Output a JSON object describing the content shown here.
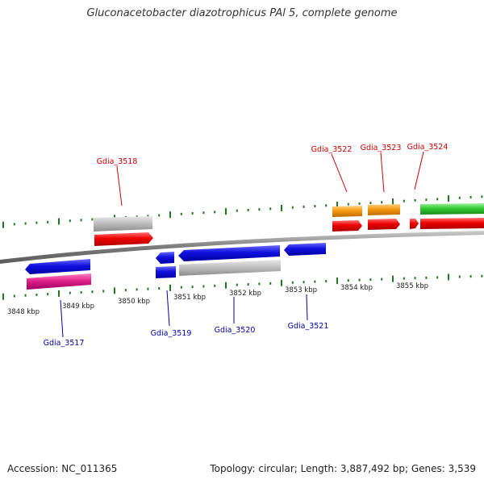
{
  "title": "Gluconacetobacter diazotrophicus PAl 5, complete genome",
  "footer": {
    "accession": "Accession: NC_011365",
    "topology": "Topology: circular; Length: 3,887,492 bp; Genes: 3,539"
  },
  "colors": {
    "backbone": "#8a8a8a",
    "tick": "#1f7a1f",
    "label_top": "#cc0000",
    "label_bottom": "#0000aa",
    "blue": "#1010e0",
    "red": "#ee0000",
    "grey": "#b8b8b8",
    "magenta": "#e0208a",
    "orange": "#f59a10",
    "green": "#33cc33"
  },
  "axis_labels": [
    "3848 kbp",
    "3849 kbp",
    "3850 kbp",
    "3851 kbp",
    "3852 kbp",
    "3853 kbp",
    "3854 kbp",
    "3855 kbp"
  ],
  "gene_labels_top": [
    "Gdia_3518",
    "Gdia_3522",
    "Gdia_3523",
    "Gdia_3524"
  ],
  "gene_labels_bottom": [
    "Gdia_3517",
    "Gdia_3519",
    "Gdia_3520",
    "Gdia_3521"
  ]
}
